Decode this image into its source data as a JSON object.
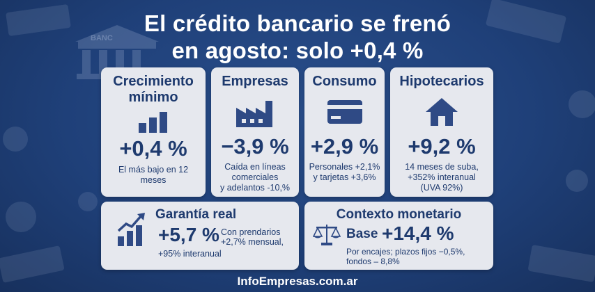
{
  "header": {
    "title_line1": "El crédito bancario se frenó",
    "title_line2": "en agosto: solo +0,4 %",
    "bank_sign": "BANC"
  },
  "colors": {
    "background": "#1f4079",
    "card": "#e6e8ee",
    "text": "#1e3a6e",
    "icon": "#2f4a85"
  },
  "cards": {
    "crecimiento": {
      "title_line1": "Crecimiento",
      "title_line2": "mínimo",
      "icon": "bar-chart-icon",
      "value": "+0,4 %",
      "note_line1": "El más bajo en 12",
      "note_line2": "meses"
    },
    "empresas": {
      "title": "Empresas",
      "icon": "factory-icon",
      "value": "−3,9 %",
      "note_line1": "Caída en líneas",
      "note_line2": "comerciales",
      "note_line3": "y adelantos -10,%"
    },
    "consumo": {
      "title": "Consumo",
      "icon": "credit-card-icon",
      "value": "+2,9 %",
      "note_line1": "Personales +2,1%",
      "note_line2": "y tarjetas +3,6%"
    },
    "hipotecarios": {
      "title": "Hipotecarios",
      "icon": "house-icon",
      "value": "+9,2 %",
      "note_line1": "14 meses de suba,",
      "note_line2": "+352% interanual",
      "note_line3": "(UVA 92%)"
    },
    "garantia": {
      "title": "Garantía real",
      "icon": "growth-chart-icon",
      "value": "+5,7 %",
      "note_line1": "Con prendarios",
      "note_line2": "+2,7% mensual,",
      "note_line3": "+95% interanual"
    },
    "contexto": {
      "title": "Contexto monetario",
      "icon": "scale-icon",
      "label": "Base",
      "value": "+14,4 %",
      "note_line1": "Por encajes; plazos fijos −0,5%,",
      "note_line2": "fondos – 8,8%"
    }
  },
  "footer": {
    "site": "InfoEmpresas.com.ar"
  }
}
